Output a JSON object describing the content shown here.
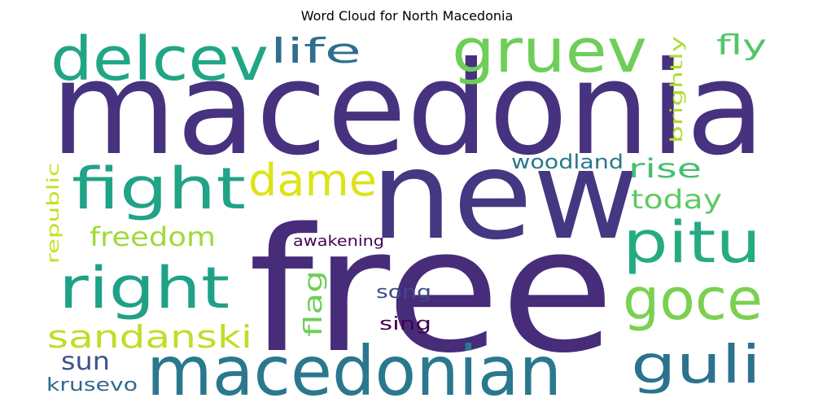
{
  "chart_data": {
    "type": "wordcloud",
    "title": "Word Cloud for North Macedonia",
    "background": "#ffffff",
    "colormap": "viridis",
    "words": [
      {
        "text": "macedonia",
        "weight": 1.0,
        "color": "#46327e",
        "orientation": "horizontal"
      },
      {
        "text": "free",
        "weight": 0.92,
        "color": "#472c7a",
        "orientation": "horizontal"
      },
      {
        "text": "new",
        "weight": 0.72,
        "color": "#453781",
        "orientation": "horizontal"
      },
      {
        "text": "macedonian",
        "weight": 0.53,
        "color": "#2a788e",
        "orientation": "horizontal"
      },
      {
        "text": "delcev",
        "weight": 0.45,
        "color": "#21a685",
        "orientation": "horizontal"
      },
      {
        "text": "gruev",
        "weight": 0.45,
        "color": "#6ece58",
        "orientation": "horizontal"
      },
      {
        "text": "fight",
        "weight": 0.42,
        "color": "#20a386",
        "orientation": "horizontal"
      },
      {
        "text": "right",
        "weight": 0.42,
        "color": "#1fa187",
        "orientation": "horizontal"
      },
      {
        "text": "pitu",
        "weight": 0.42,
        "color": "#25ab82",
        "orientation": "horizontal"
      },
      {
        "text": "goce",
        "weight": 0.42,
        "color": "#7ad151",
        "orientation": "horizontal"
      },
      {
        "text": "guli",
        "weight": 0.38,
        "color": "#2c728e",
        "orientation": "horizontal"
      },
      {
        "text": "dame",
        "weight": 0.3,
        "color": "#dde318",
        "orientation": "horizontal"
      },
      {
        "text": "sandanski",
        "weight": 0.24,
        "color": "#bddf26",
        "orientation": "horizontal"
      },
      {
        "text": "life",
        "weight": 0.21,
        "color": "#2e6e8e",
        "orientation": "horizontal"
      },
      {
        "text": "fly",
        "weight": 0.16,
        "color": "#52c569",
        "orientation": "horizontal"
      },
      {
        "text": "freedom",
        "weight": 0.15,
        "color": "#a0da39",
        "orientation": "horizontal"
      },
      {
        "text": "rise",
        "weight": 0.15,
        "color": "#44bf70",
        "orientation": "horizontal"
      },
      {
        "text": "today",
        "weight": 0.15,
        "color": "#5ec962",
        "orientation": "horizontal"
      },
      {
        "text": "sun",
        "weight": 0.14,
        "color": "#3b528b",
        "orientation": "horizontal"
      },
      {
        "text": "flag",
        "weight": 0.15,
        "color": "#6ece58",
        "orientation": "vertical"
      },
      {
        "text": "brightly",
        "weight": 0.12,
        "color": "#addc30",
        "orientation": "vertical"
      },
      {
        "text": "republic",
        "weight": 0.12,
        "color": "#c8e020",
        "orientation": "vertical"
      },
      {
        "text": "woodland",
        "weight": 0.11,
        "color": "#2a788e",
        "orientation": "horizontal"
      },
      {
        "text": "song",
        "weight": 0.11,
        "color": "#3e4a89",
        "orientation": "horizontal"
      },
      {
        "text": "sing",
        "weight": 0.11,
        "color": "#440154",
        "orientation": "horizontal"
      },
      {
        "text": "krusevo",
        "weight": 0.11,
        "color": "#31688e",
        "orientation": "horizontal"
      },
      {
        "text": "awakening",
        "weight": 0.09,
        "color": "#440154",
        "orientation": "horizontal"
      }
    ]
  }
}
